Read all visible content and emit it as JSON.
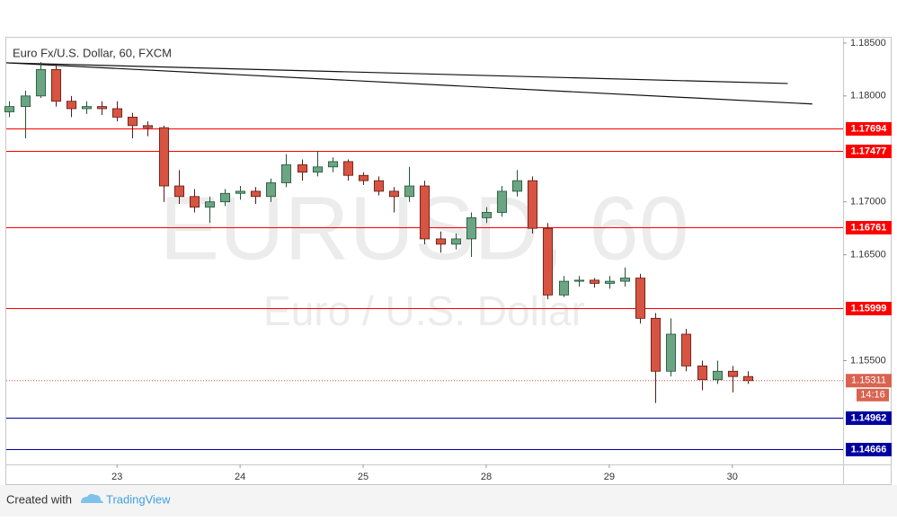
{
  "chart_data": {
    "type": "candlestick",
    "title": "Euro Fx/U.S. Dollar, 60, FXCM",
    "watermark": [
      "EURUSD, 60",
      "Euro / U.S. Dollar"
    ],
    "up_color": "#6ba583",
    "down_color": "#d75442",
    "x": [
      0.125,
      0.25,
      0.375,
      0.5,
      0.625,
      0.75,
      0.875,
      1.0,
      1.125,
      1.25,
      1.375,
      1.5,
      1.625,
      1.75,
      1.875,
      2.0,
      2.125,
      2.25,
      2.375,
      2.5,
      2.625,
      2.75,
      2.875,
      3.0,
      3.125,
      3.25,
      3.375,
      3.5,
      3.625,
      3.75,
      3.875,
      4.0,
      4.125,
      4.25,
      4.375,
      4.5,
      4.625,
      4.75,
      4.875,
      5.0,
      5.125,
      5.25,
      5.375,
      5.5,
      5.625,
      5.75,
      5.875,
      6.0,
      6.125
    ],
    "open": [
      1.1785,
      1.179,
      1.18,
      1.1825,
      1.1795,
      1.1788,
      1.179,
      1.1788,
      1.178,
      1.1772,
      1.177,
      1.1715,
      1.1705,
      1.1695,
      1.17,
      1.1708,
      1.171,
      1.1705,
      1.1718,
      1.1735,
      1.1728,
      1.1733,
      1.1738,
      1.1725,
      1.172,
      1.171,
      1.1705,
      1.1715,
      1.1665,
      1.166,
      1.1665,
      1.1685,
      1.169,
      1.171,
      1.172,
      1.1675,
      1.1612,
      1.1625,
      1.1626,
      1.1623,
      1.1625,
      1.1628,
      1.159,
      1.154,
      1.1575,
      1.1545,
      1.1532,
      1.154,
      1.1535
    ],
    "high": [
      1.1795,
      1.1805,
      1.1832,
      1.183,
      1.18,
      1.1795,
      1.1795,
      1.1795,
      1.1784,
      1.1776,
      1.1772,
      1.173,
      1.1712,
      1.1705,
      1.1712,
      1.1715,
      1.1714,
      1.1722,
      1.1745,
      1.174,
      1.1748,
      1.1742,
      1.174,
      1.1728,
      1.1724,
      1.1714,
      1.1733,
      1.172,
      1.1672,
      1.167,
      1.169,
      1.1695,
      1.1715,
      1.173,
      1.1724,
      1.168,
      1.163,
      1.163,
      1.1628,
      1.163,
      1.1638,
      1.1632,
      1.1595,
      1.159,
      1.158,
      1.155,
      1.155,
      1.1545,
      1.154
    ],
    "low": [
      1.178,
      1.176,
      1.1798,
      1.179,
      1.178,
      1.1783,
      1.1782,
      1.1776,
      1.176,
      1.1762,
      1.17,
      1.1698,
      1.169,
      1.168,
      1.1696,
      1.1702,
      1.1698,
      1.17,
      1.1714,
      1.172,
      1.1724,
      1.1728,
      1.172,
      1.1716,
      1.1706,
      1.169,
      1.17,
      1.166,
      1.1652,
      1.1655,
      1.1648,
      1.168,
      1.1686,
      1.1705,
      1.167,
      1.1608,
      1.161,
      1.162,
      1.1619,
      1.1618,
      1.162,
      1.1585,
      1.151,
      1.1535,
      1.154,
      1.1522,
      1.1528,
      1.152,
      1.1528
    ],
    "close": [
      1.179,
      1.18,
      1.1825,
      1.1795,
      1.1788,
      1.179,
      1.1788,
      1.178,
      1.1772,
      1.177,
      1.1715,
      1.1705,
      1.1695,
      1.17,
      1.1708,
      1.171,
      1.1705,
      1.1718,
      1.1735,
      1.1728,
      1.1733,
      1.1738,
      1.1725,
      1.172,
      1.171,
      1.1705,
      1.1715,
      1.1665,
      1.166,
      1.1665,
      1.1685,
      1.169,
      1.171,
      1.172,
      1.1675,
      1.1612,
      1.1625,
      1.1626,
      1.1623,
      1.1625,
      1.1628,
      1.159,
      1.154,
      1.1575,
      1.1545,
      1.1532,
      1.154,
      1.1535,
      1.15311
    ],
    "countdown": "14:16",
    "xlim": [
      0.1,
      6.9
    ],
    "xticks": [
      {
        "value": 1,
        "label": "23"
      },
      {
        "value": 2,
        "label": "24"
      },
      {
        "value": 3,
        "label": "25"
      },
      {
        "value": 4,
        "label": "28"
      },
      {
        "value": 5,
        "label": "29"
      },
      {
        "value": 6,
        "label": "30"
      }
    ],
    "ylim": [
      1.1452,
      1.1855
    ],
    "yticks": [
      {
        "value": 1.185,
        "label": "1.18500"
      },
      {
        "value": 1.18,
        "label": "1.18000"
      },
      {
        "value": 1.17,
        "label": "1.17000"
      },
      {
        "value": 1.165,
        "label": "1.16500"
      },
      {
        "value": 1.155,
        "label": "1.15500"
      }
    ],
    "levels": [
      {
        "value": 1.17694,
        "color": "#ff0000"
      },
      {
        "value": 1.17477,
        "color": "#ff0000"
      },
      {
        "value": 1.16761,
        "color": "#ff0000"
      },
      {
        "value": 1.15999,
        "color": "#ff0000"
      },
      {
        "value": 1.14962,
        "color": "#0000a0"
      },
      {
        "value": 1.14666,
        "color": "#0000a0"
      }
    ],
    "trendlines": [
      {
        "x": [
          0.1,
          6.45
        ],
        "y": [
          1.18313,
          1.18118
        ]
      },
      {
        "x": [
          0.1,
          6.65
        ],
        "y": [
          1.18313,
          1.17924
        ]
      }
    ]
  },
  "footer": {
    "prefix": "Created with",
    "brand": "TradingView"
  }
}
